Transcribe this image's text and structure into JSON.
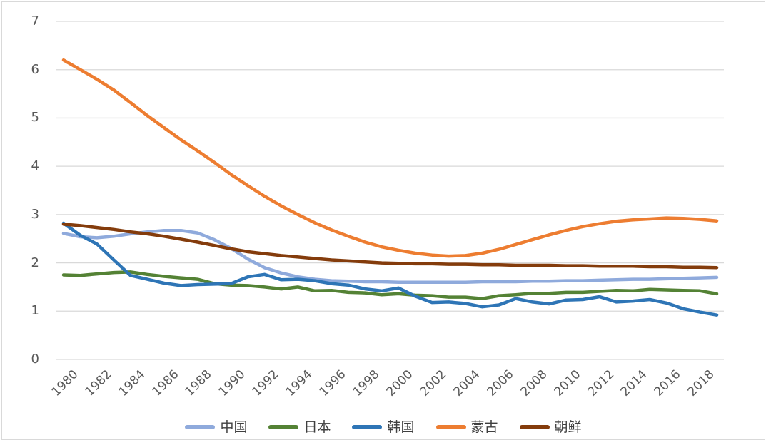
{
  "chart_data": {
    "type": "line",
    "title": "",
    "xlabel": "",
    "ylabel": "",
    "ylim": [
      0,
      7
    ],
    "y_ticks": [
      0,
      1,
      2,
      3,
      4,
      5,
      6,
      7
    ],
    "x_tick_labels": [
      "1980",
      "1982",
      "1984",
      "1986",
      "1988",
      "1990",
      "1992",
      "1994",
      "1996",
      "1998",
      "2000",
      "2002",
      "2004",
      "2006",
      "2008",
      "2010",
      "2012",
      "2014",
      "2016",
      "2018"
    ],
    "grid": "horizontal",
    "legend_position": "bottom",
    "x": [
      1980,
      1981,
      1982,
      1983,
      1984,
      1985,
      1986,
      1987,
      1988,
      1989,
      1990,
      1991,
      1992,
      1993,
      1994,
      1995,
      1996,
      1997,
      1998,
      1999,
      2000,
      2001,
      2002,
      2003,
      2004,
      2005,
      2006,
      2007,
      2008,
      2009,
      2010,
      2011,
      2012,
      2013,
      2014,
      2015,
      2016,
      2017,
      2018,
      2019
    ],
    "series": [
      {
        "name": "中国",
        "color": "#8FAADC",
        "values": [
          2.61,
          2.54,
          2.52,
          2.55,
          2.6,
          2.64,
          2.67,
          2.67,
          2.62,
          2.48,
          2.3,
          2.08,
          1.9,
          1.79,
          1.71,
          1.66,
          1.63,
          1.62,
          1.61,
          1.61,
          1.6,
          1.6,
          1.6,
          1.6,
          1.6,
          1.61,
          1.61,
          1.61,
          1.62,
          1.62,
          1.63,
          1.63,
          1.64,
          1.65,
          1.66,
          1.66,
          1.67,
          1.68,
          1.69,
          1.7
        ]
      },
      {
        "name": "日本",
        "color": "#548235",
        "values": [
          1.75,
          1.74,
          1.77,
          1.8,
          1.81,
          1.76,
          1.72,
          1.69,
          1.66,
          1.57,
          1.54,
          1.53,
          1.5,
          1.46,
          1.5,
          1.42,
          1.43,
          1.39,
          1.38,
          1.34,
          1.36,
          1.33,
          1.32,
          1.29,
          1.29,
          1.26,
          1.32,
          1.34,
          1.37,
          1.37,
          1.39,
          1.39,
          1.41,
          1.43,
          1.42,
          1.45,
          1.44,
          1.43,
          1.42,
          1.36
        ]
      },
      {
        "name": "韩国",
        "color": "#2E75B6",
        "values": [
          2.82,
          2.57,
          2.39,
          2.06,
          1.74,
          1.66,
          1.58,
          1.53,
          1.55,
          1.56,
          1.57,
          1.71,
          1.76,
          1.65,
          1.66,
          1.63,
          1.57,
          1.54,
          1.46,
          1.42,
          1.48,
          1.31,
          1.18,
          1.19,
          1.16,
          1.09,
          1.13,
          1.26,
          1.19,
          1.15,
          1.23,
          1.24,
          1.3,
          1.19,
          1.21,
          1.24,
          1.17,
          1.05,
          0.98,
          0.92
        ]
      },
      {
        "name": "蒙古",
        "color": "#ED7D31",
        "values": [
          6.2,
          6.0,
          5.8,
          5.58,
          5.32,
          5.05,
          4.8,
          4.55,
          4.32,
          4.08,
          3.83,
          3.6,
          3.38,
          3.18,
          3.0,
          2.83,
          2.68,
          2.55,
          2.43,
          2.33,
          2.26,
          2.2,
          2.16,
          2.14,
          2.15,
          2.2,
          2.28,
          2.38,
          2.48,
          2.58,
          2.67,
          2.75,
          2.81,
          2.86,
          2.89,
          2.91,
          2.93,
          2.92,
          2.9,
          2.87
        ]
      },
      {
        "name": "朝鲜",
        "color": "#843C0C",
        "values": [
          2.8,
          2.77,
          2.73,
          2.69,
          2.64,
          2.6,
          2.55,
          2.49,
          2.43,
          2.36,
          2.29,
          2.23,
          2.19,
          2.15,
          2.12,
          2.09,
          2.06,
          2.04,
          2.02,
          2.0,
          1.99,
          1.98,
          1.98,
          1.97,
          1.97,
          1.96,
          1.96,
          1.95,
          1.95,
          1.95,
          1.94,
          1.94,
          1.93,
          1.93,
          1.93,
          1.92,
          1.92,
          1.91,
          1.91,
          1.9
        ]
      }
    ]
  },
  "colors": {
    "gridline": "#D9D9D9",
    "axis_text": "#595959",
    "legend_text": "#3F3F3F",
    "background": "#FFFFFF",
    "frame_border": "#D9D9D9"
  }
}
